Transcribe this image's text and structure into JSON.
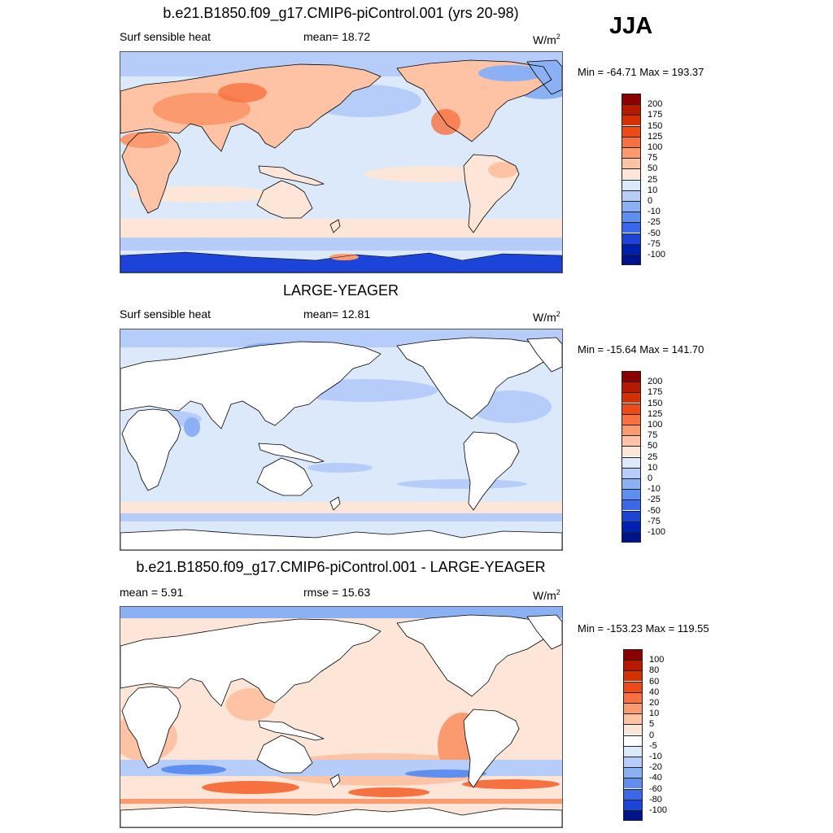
{
  "season": "JJA",
  "units": {
    "base": "W/m",
    "sup": "2"
  },
  "panels": [
    {
      "title": "b.e21.B1850.f09_g17.CMIP6-piControl.001 (yrs 20-98)",
      "left_label": "Surf sensible heat",
      "mid_label": "mean=  18.72",
      "minmax": "Min = -64.71 Max = 193.37",
      "field": "control",
      "colorbar": {
        "labels": [
          "200",
          "175",
          "150",
          "125",
          "100",
          "75",
          "50",
          "25",
          "10",
          "0",
          "-10",
          "-25",
          "-50",
          "-75",
          "-100"
        ],
        "colors": [
          "#8c0000",
          "#b51a00",
          "#d63000",
          "#ee4a18",
          "#f7703f",
          "#fb9a6f",
          "#fdc3a4",
          "#fde6d8",
          "#dbe9fb",
          "#b5cdf8",
          "#8bb0f4",
          "#5e8ef0",
          "#3a68e8",
          "#1c44d8",
          "#0020b0",
          "#00138a"
        ]
      }
    },
    {
      "title": "LARGE-YEAGER",
      "left_label": "Surf sensible heat",
      "mid_label": "mean=  12.81",
      "minmax": "Min = -15.64 Max = 141.70",
      "field": "obs",
      "colorbar": {
        "labels": [
          "200",
          "175",
          "150",
          "125",
          "100",
          "75",
          "50",
          "25",
          "10",
          "0",
          "-10",
          "-25",
          "-50",
          "-75",
          "-100"
        ],
        "colors": [
          "#8c0000",
          "#b51a00",
          "#d63000",
          "#ee4a18",
          "#f7703f",
          "#fb9a6f",
          "#fdc3a4",
          "#fde6d8",
          "#dbe9fb",
          "#b5cdf8",
          "#8bb0f4",
          "#5e8ef0",
          "#3a68e8",
          "#1c44d8",
          "#0020b0",
          "#00138a"
        ]
      }
    },
    {
      "title": "b.e21.B1850.f09_g17.CMIP6-piControl.001 - LARGE-YEAGER",
      "left_label": "mean =   5.91",
      "mid_label": "rmse =  15.63",
      "minmax": "Min = -153.23 Max = 119.55",
      "field": "diff",
      "colorbar": {
        "labels": [
          "100",
          "80",
          "60",
          "40",
          "20",
          "10",
          "5",
          "0",
          "-5",
          "-10",
          "-20",
          "-40",
          "-60",
          "-80",
          "-100"
        ],
        "colors": [
          "#8c0000",
          "#b51a00",
          "#d63000",
          "#ee4a18",
          "#f7703f",
          "#fb9a6f",
          "#fdc3a4",
          "#fde6d8",
          "#ffffff",
          "#dbe9fb",
          "#b5cdf8",
          "#8bb0f4",
          "#5e8ef0",
          "#3a68e8",
          "#1c44d8",
          "#00138a"
        ]
      }
    }
  ]
}
